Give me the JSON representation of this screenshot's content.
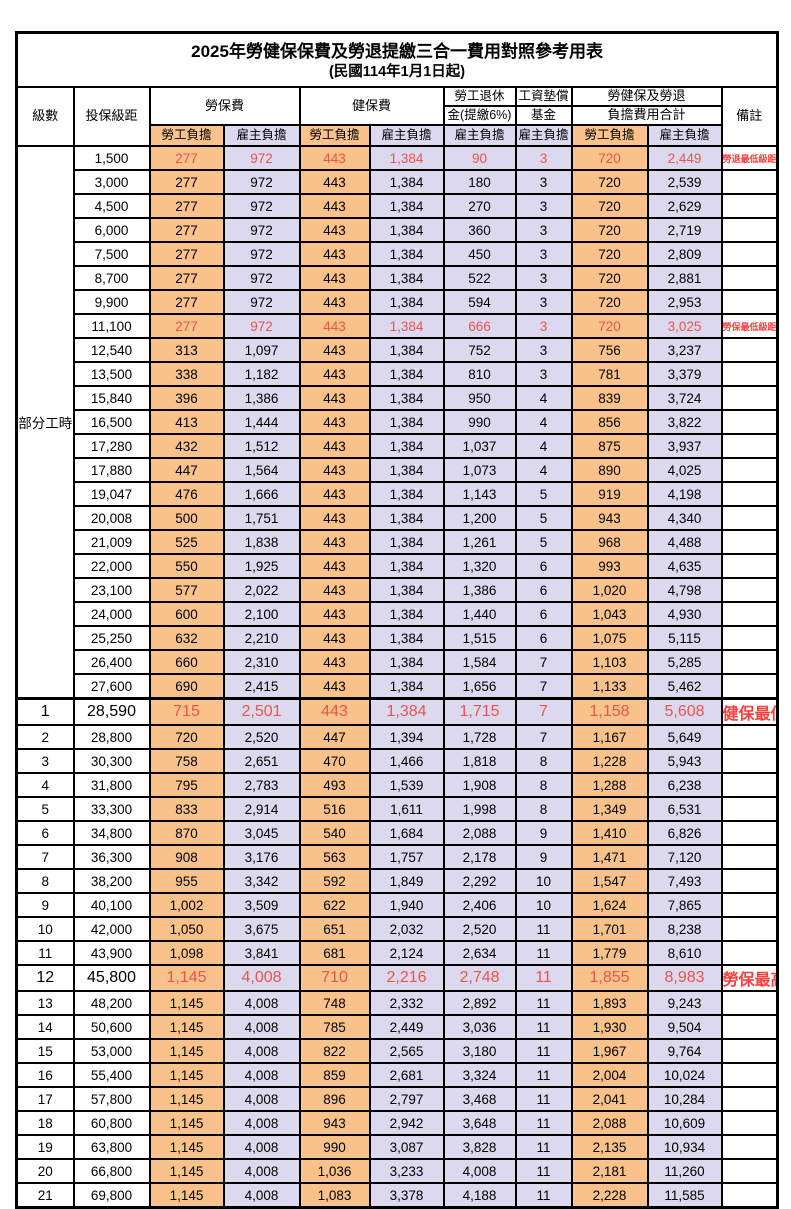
{
  "title": "2025年勞健保保費及勞退提繳三合一費用對照參考用表",
  "subtitle": "(民國114年1月1日起)",
  "columns": {
    "level": "級數",
    "bracket": "投保級距",
    "labor_insurance": "勞保費",
    "health_insurance": "健保費",
    "pension_line1": "勞工退休",
    "pension_line2": "金(提繳6%)",
    "wage_fund_line1": "工資墊償",
    "wage_fund_line2": "基金",
    "total_line1": "勞健保及勞退",
    "total_line2": "負擔費用合計",
    "remark": "備註",
    "employee_share": "勞工負擔",
    "employer_share": "雇主負擔"
  },
  "part_time": {
    "label": "部分工時",
    "span": 23
  },
  "colors": {
    "employee_bg": "#F9C28B",
    "employer_bg": "#DCD9EE",
    "value_red": "#E8554E",
    "remark_red": "#FF4040"
  },
  "rows": [
    {
      "lv": "",
      "b": "1,500",
      "a1": "277",
      "a2": "972",
      "h1": "443",
      "h2": "1,384",
      "p": "90",
      "f": "3",
      "t1": "720",
      "t2": "2,449",
      "r": "勞退最低級距",
      "hl": "red"
    },
    {
      "lv": "",
      "b": "3,000",
      "a1": "277",
      "a2": "972",
      "h1": "443",
      "h2": "1,384",
      "p": "180",
      "f": "3",
      "t1": "720",
      "t2": "2,539",
      "r": "",
      "hl": ""
    },
    {
      "lv": "",
      "b": "4,500",
      "a1": "277",
      "a2": "972",
      "h1": "443",
      "h2": "1,384",
      "p": "270",
      "f": "3",
      "t1": "720",
      "t2": "2,629",
      "r": "",
      "hl": ""
    },
    {
      "lv": "",
      "b": "6,000",
      "a1": "277",
      "a2": "972",
      "h1": "443",
      "h2": "1,384",
      "p": "360",
      "f": "3",
      "t1": "720",
      "t2": "2,719",
      "r": "",
      "hl": ""
    },
    {
      "lv": "",
      "b": "7,500",
      "a1": "277",
      "a2": "972",
      "h1": "443",
      "h2": "1,384",
      "p": "450",
      "f": "3",
      "t1": "720",
      "t2": "2,809",
      "r": "",
      "hl": ""
    },
    {
      "lv": "",
      "b": "8,700",
      "a1": "277",
      "a2": "972",
      "h1": "443",
      "h2": "1,384",
      "p": "522",
      "f": "3",
      "t1": "720",
      "t2": "2,881",
      "r": "",
      "hl": ""
    },
    {
      "lv": "",
      "b": "9,900",
      "a1": "277",
      "a2": "972",
      "h1": "443",
      "h2": "1,384",
      "p": "594",
      "f": "3",
      "t1": "720",
      "t2": "2,953",
      "r": "",
      "hl": ""
    },
    {
      "lv": "",
      "b": "11,100",
      "a1": "277",
      "a2": "972",
      "h1": "443",
      "h2": "1,384",
      "p": "666",
      "f": "3",
      "t1": "720",
      "t2": "3,025",
      "r": "勞保最低級距",
      "hl": "red"
    },
    {
      "lv": "",
      "b": "12,540",
      "a1": "313",
      "a2": "1,097",
      "h1": "443",
      "h2": "1,384",
      "p": "752",
      "f": "3",
      "t1": "756",
      "t2": "3,237",
      "r": "",
      "hl": ""
    },
    {
      "lv": "",
      "b": "13,500",
      "a1": "338",
      "a2": "1,182",
      "h1": "443",
      "h2": "1,384",
      "p": "810",
      "f": "3",
      "t1": "781",
      "t2": "3,379",
      "r": "",
      "hl": ""
    },
    {
      "lv": "",
      "b": "15,840",
      "a1": "396",
      "a2": "1,386",
      "h1": "443",
      "h2": "1,384",
      "p": "950",
      "f": "4",
      "t1": "839",
      "t2": "3,724",
      "r": "",
      "hl": ""
    },
    {
      "lv": "",
      "b": "16,500",
      "a1": "413",
      "a2": "1,444",
      "h1": "443",
      "h2": "1,384",
      "p": "990",
      "f": "4",
      "t1": "856",
      "t2": "3,822",
      "r": "",
      "hl": ""
    },
    {
      "lv": "",
      "b": "17,280",
      "a1": "432",
      "a2": "1,512",
      "h1": "443",
      "h2": "1,384",
      "p": "1,037",
      "f": "4",
      "t1": "875",
      "t2": "3,937",
      "r": "",
      "hl": ""
    },
    {
      "lv": "",
      "b": "17,880",
      "a1": "447",
      "a2": "1,564",
      "h1": "443",
      "h2": "1,384",
      "p": "1,073",
      "f": "4",
      "t1": "890",
      "t2": "4,025",
      "r": "",
      "hl": ""
    },
    {
      "lv": "",
      "b": "19,047",
      "a1": "476",
      "a2": "1,666",
      "h1": "443",
      "h2": "1,384",
      "p": "1,143",
      "f": "5",
      "t1": "919",
      "t2": "4,198",
      "r": "",
      "hl": ""
    },
    {
      "lv": "",
      "b": "20,008",
      "a1": "500",
      "a2": "1,751",
      "h1": "443",
      "h2": "1,384",
      "p": "1,200",
      "f": "5",
      "t1": "943",
      "t2": "4,340",
      "r": "",
      "hl": ""
    },
    {
      "lv": "",
      "b": "21,009",
      "a1": "525",
      "a2": "1,838",
      "h1": "443",
      "h2": "1,384",
      "p": "1,261",
      "f": "5",
      "t1": "968",
      "t2": "4,488",
      "r": "",
      "hl": ""
    },
    {
      "lv": "",
      "b": "22,000",
      "a1": "550",
      "a2": "1,925",
      "h1": "443",
      "h2": "1,384",
      "p": "1,320",
      "f": "6",
      "t1": "993",
      "t2": "4,635",
      "r": "",
      "hl": ""
    },
    {
      "lv": "",
      "b": "23,100",
      "a1": "577",
      "a2": "2,022",
      "h1": "443",
      "h2": "1,384",
      "p": "1,386",
      "f": "6",
      "t1": "1,020",
      "t2": "4,798",
      "r": "",
      "hl": ""
    },
    {
      "lv": "",
      "b": "24,000",
      "a1": "600",
      "a2": "2,100",
      "h1": "443",
      "h2": "1,384",
      "p": "1,440",
      "f": "6",
      "t1": "1,043",
      "t2": "4,930",
      "r": "",
      "hl": ""
    },
    {
      "lv": "",
      "b": "25,250",
      "a1": "632",
      "a2": "2,210",
      "h1": "443",
      "h2": "1,384",
      "p": "1,515",
      "f": "6",
      "t1": "1,075",
      "t2": "5,115",
      "r": "",
      "hl": ""
    },
    {
      "lv": "",
      "b": "26,400",
      "a1": "660",
      "a2": "2,310",
      "h1": "443",
      "h2": "1,384",
      "p": "1,584",
      "f": "7",
      "t1": "1,103",
      "t2": "5,285",
      "r": "",
      "hl": ""
    },
    {
      "lv": "",
      "b": "27,600",
      "a1": "690",
      "a2": "2,415",
      "h1": "443",
      "h2": "1,384",
      "p": "1,656",
      "f": "7",
      "t1": "1,133",
      "t2": "5,462",
      "r": "",
      "hl": ""
    },
    {
      "lv": "1",
      "b": "28,590",
      "a1": "715",
      "a2": "2,501",
      "h1": "443",
      "h2": "1,384",
      "p": "1,715",
      "f": "7",
      "t1": "1,158",
      "t2": "5,608",
      "r": "健保最低級距",
      "hl": "redbig",
      "sep": true
    },
    {
      "lv": "2",
      "b": "28,800",
      "a1": "720",
      "a2": "2,520",
      "h1": "447",
      "h2": "1,394",
      "p": "1,728",
      "f": "7",
      "t1": "1,167",
      "t2": "5,649",
      "r": "",
      "hl": ""
    },
    {
      "lv": "3",
      "b": "30,300",
      "a1": "758",
      "a2": "2,651",
      "h1": "470",
      "h2": "1,466",
      "p": "1,818",
      "f": "8",
      "t1": "1,228",
      "t2": "5,943",
      "r": "",
      "hl": ""
    },
    {
      "lv": "4",
      "b": "31,800",
      "a1": "795",
      "a2": "2,783",
      "h1": "493",
      "h2": "1,539",
      "p": "1,908",
      "f": "8",
      "t1": "1,288",
      "t2": "6,238",
      "r": "",
      "hl": ""
    },
    {
      "lv": "5",
      "b": "33,300",
      "a1": "833",
      "a2": "2,914",
      "h1": "516",
      "h2": "1,611",
      "p": "1,998",
      "f": "8",
      "t1": "1,349",
      "t2": "6,531",
      "r": "",
      "hl": ""
    },
    {
      "lv": "6",
      "b": "34,800",
      "a1": "870",
      "a2": "3,045",
      "h1": "540",
      "h2": "1,684",
      "p": "2,088",
      "f": "9",
      "t1": "1,410",
      "t2": "6,826",
      "r": "",
      "hl": ""
    },
    {
      "lv": "7",
      "b": "36,300",
      "a1": "908",
      "a2": "3,176",
      "h1": "563",
      "h2": "1,757",
      "p": "2,178",
      "f": "9",
      "t1": "1,471",
      "t2": "7,120",
      "r": "",
      "hl": ""
    },
    {
      "lv": "8",
      "b": "38,200",
      "a1": "955",
      "a2": "3,342",
      "h1": "592",
      "h2": "1,849",
      "p": "2,292",
      "f": "10",
      "t1": "1,547",
      "t2": "7,493",
      "r": "",
      "hl": ""
    },
    {
      "lv": "9",
      "b": "40,100",
      "a1": "1,002",
      "a2": "3,509",
      "h1": "622",
      "h2": "1,940",
      "p": "2,406",
      "f": "10",
      "t1": "1,624",
      "t2": "7,865",
      "r": "",
      "hl": ""
    },
    {
      "lv": "10",
      "b": "42,000",
      "a1": "1,050",
      "a2": "3,675",
      "h1": "651",
      "h2": "2,032",
      "p": "2,520",
      "f": "11",
      "t1": "1,701",
      "t2": "8,238",
      "r": "",
      "hl": ""
    },
    {
      "lv": "11",
      "b": "43,900",
      "a1": "1,098",
      "a2": "3,841",
      "h1": "681",
      "h2": "2,124",
      "p": "2,634",
      "f": "11",
      "t1": "1,779",
      "t2": "8,610",
      "r": "",
      "hl": ""
    },
    {
      "lv": "12",
      "b": "45,800",
      "a1": "1,145",
      "a2": "4,008",
      "h1": "710",
      "h2": "2,216",
      "p": "2,748",
      "f": "11",
      "t1": "1,855",
      "t2": "8,983",
      "r": "勞保最高級距",
      "hl": "redbig"
    },
    {
      "lv": "13",
      "b": "48,200",
      "a1": "1,145",
      "a2": "4,008",
      "h1": "748",
      "h2": "2,332",
      "p": "2,892",
      "f": "11",
      "t1": "1,893",
      "t2": "9,243",
      "r": "",
      "hl": ""
    },
    {
      "lv": "14",
      "b": "50,600",
      "a1": "1,145",
      "a2": "4,008",
      "h1": "785",
      "h2": "2,449",
      "p": "3,036",
      "f": "11",
      "t1": "1,930",
      "t2": "9,504",
      "r": "",
      "hl": ""
    },
    {
      "lv": "15",
      "b": "53,000",
      "a1": "1,145",
      "a2": "4,008",
      "h1": "822",
      "h2": "2,565",
      "p": "3,180",
      "f": "11",
      "t1": "1,967",
      "t2": "9,764",
      "r": "",
      "hl": ""
    },
    {
      "lv": "16",
      "b": "55,400",
      "a1": "1,145",
      "a2": "4,008",
      "h1": "859",
      "h2": "2,681",
      "p": "3,324",
      "f": "11",
      "t1": "2,004",
      "t2": "10,024",
      "r": "",
      "hl": ""
    },
    {
      "lv": "17",
      "b": "57,800",
      "a1": "1,145",
      "a2": "4,008",
      "h1": "896",
      "h2": "2,797",
      "p": "3,468",
      "f": "11",
      "t1": "2,041",
      "t2": "10,284",
      "r": "",
      "hl": ""
    },
    {
      "lv": "18",
      "b": "60,800",
      "a1": "1,145",
      "a2": "4,008",
      "h1": "943",
      "h2": "2,942",
      "p": "3,648",
      "f": "11",
      "t1": "2,088",
      "t2": "10,609",
      "r": "",
      "hl": ""
    },
    {
      "lv": "19",
      "b": "63,800",
      "a1": "1,145",
      "a2": "4,008",
      "h1": "990",
      "h2": "3,087",
      "p": "3,828",
      "f": "11",
      "t1": "2,135",
      "t2": "10,934",
      "r": "",
      "hl": ""
    },
    {
      "lv": "20",
      "b": "66,800",
      "a1": "1,145",
      "a2": "4,008",
      "h1": "1,036",
      "h2": "3,233",
      "p": "4,008",
      "f": "11",
      "t1": "2,181",
      "t2": "11,260",
      "r": "",
      "hl": ""
    },
    {
      "lv": "21",
      "b": "69,800",
      "a1": "1,145",
      "a2": "4,008",
      "h1": "1,083",
      "h2": "3,378",
      "p": "4,188",
      "f": "11",
      "t1": "2,228",
      "t2": "11,585",
      "r": "",
      "hl": ""
    }
  ]
}
